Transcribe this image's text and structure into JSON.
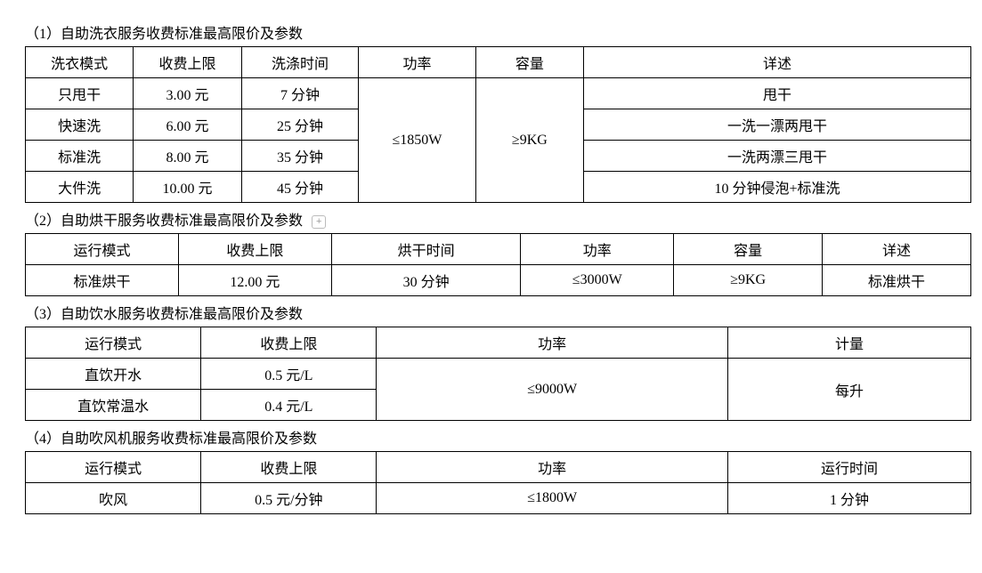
{
  "section1": {
    "title": "（1）自助洗衣服务收费标准最高限价及参数",
    "headers": [
      "洗衣模式",
      "收费上限",
      "洗涤时间",
      "功率",
      "容量",
      "详述"
    ],
    "col_widths": [
      "120",
      "120",
      "130",
      "130",
      "120",
      "430"
    ],
    "power": "≤1850W",
    "capacity": "≥9KG",
    "rows": [
      {
        "mode": "只甩干",
        "price": "3.00 元",
        "time": "7 分钟",
        "desc": "甩干"
      },
      {
        "mode": "快速洗",
        "price": "6.00 元",
        "time": "25 分钟",
        "desc": "一洗一漂两甩干"
      },
      {
        "mode": "标准洗",
        "price": "8.00 元",
        "time": "35 分钟",
        "desc": "一洗两漂三甩干"
      },
      {
        "mode": "大件洗",
        "price": "10.00 元",
        "time": "45 分钟",
        "desc": "10 分钟侵泡+标准洗"
      }
    ]
  },
  "section2": {
    "title": "（2）自助烘干服务收费标准最高限价及参数",
    "headers": [
      "运行模式",
      "收费上限",
      "烘干时间",
      "功率",
      "容量",
      "详述"
    ],
    "col_widths": [
      "170",
      "170",
      "210",
      "170",
      "165",
      "165"
    ],
    "row": {
      "mode": "标准烘干",
      "price": "12.00 元",
      "time": "30 分钟",
      "power": "≤3000W",
      "capacity": "≥9KG",
      "desc": "标准烘干"
    }
  },
  "section3": {
    "title": "（3）自助饮水服务收费标准最高限价及参数",
    "headers": [
      "运行模式",
      "收费上限",
      "功率",
      "计量"
    ],
    "col_widths": [
      "195",
      "195",
      "390",
      "270"
    ],
    "power": "≤9000W",
    "measure": "每升",
    "rows": [
      {
        "mode": "直饮开水",
        "price": "0.5 元/L"
      },
      {
        "mode": "直饮常温水",
        "price": "0.4 元/L"
      }
    ]
  },
  "section4": {
    "title": "（4）自助吹风机服务收费标准最高限价及参数",
    "headers": [
      "运行模式",
      "收费上限",
      "功率",
      "运行时间"
    ],
    "col_widths": [
      "195",
      "195",
      "390",
      "270"
    ],
    "row": {
      "mode": "吹风",
      "price": "0.5 元/分钟",
      "power": "≤1800W",
      "time": "1 分钟"
    }
  }
}
